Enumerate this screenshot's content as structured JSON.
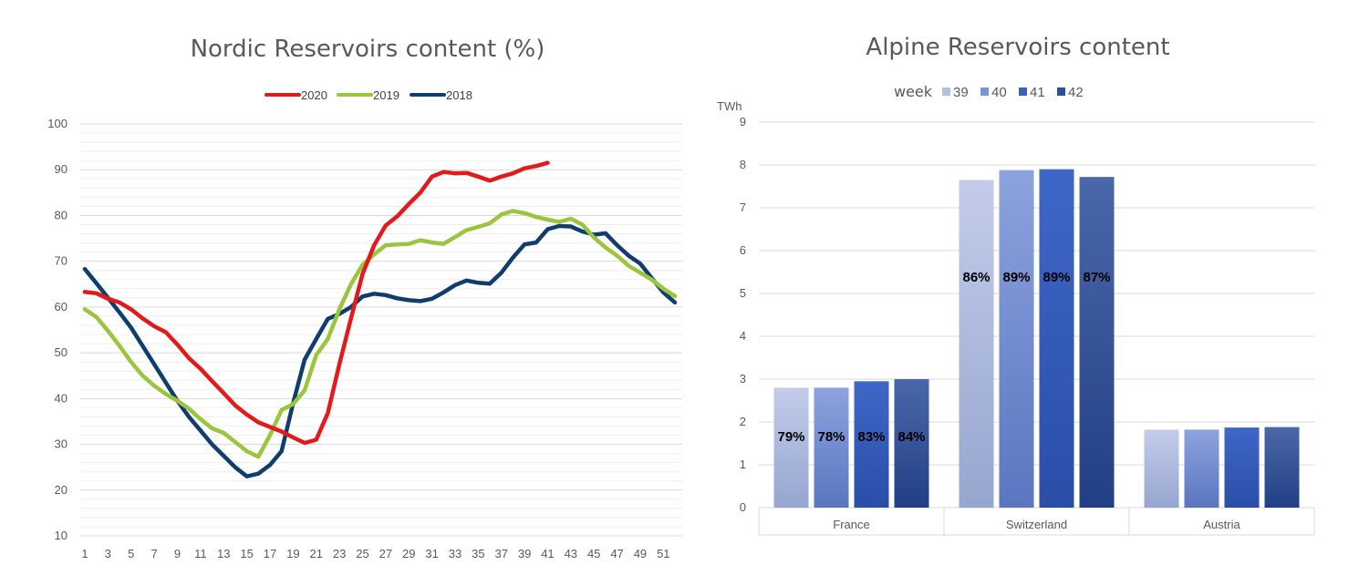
{
  "chart_data": [
    {
      "type": "line",
      "title": "Nordic Reservoirs content (%)",
      "xlabel": "",
      "ylabel": "",
      "ylim": [
        10,
        100
      ],
      "xlim": [
        1,
        52
      ],
      "grid": true,
      "legend_position": "top-center",
      "y_ticks": [
        10,
        20,
        30,
        40,
        50,
        60,
        70,
        80,
        90,
        100
      ],
      "x_ticks": [
        1,
        3,
        5,
        7,
        9,
        11,
        13,
        15,
        17,
        19,
        21,
        23,
        25,
        27,
        29,
        31,
        33,
        35,
        37,
        39,
        41,
        43,
        45,
        47,
        49,
        51
      ],
      "series": [
        {
          "name": "2020",
          "color": "#e31a1c",
          "x": [
            1,
            2,
            3,
            4,
            5,
            6,
            7,
            8,
            9,
            10,
            11,
            12,
            13,
            14,
            15,
            16,
            17,
            18,
            19,
            20,
            21,
            22,
            23,
            24,
            25,
            26,
            27,
            28,
            29,
            30,
            31,
            32,
            33,
            34,
            35,
            36,
            37,
            38,
            39,
            40,
            41
          ],
          "y": [
            63.3,
            63.0,
            61.8,
            61.0,
            59.5,
            57.5,
            55.8,
            54.5,
            51.8,
            48.8,
            46.5,
            43.8,
            41.2,
            38.5,
            36.5,
            34.8,
            33.8,
            32.8,
            31.5,
            30.3,
            31.0,
            36.8,
            47.5,
            57.5,
            67.2,
            73.5,
            77.8,
            79.8,
            82.5,
            85.0,
            88.5,
            89.5,
            89.2,
            89.3,
            88.5,
            87.6,
            88.5,
            89.2,
            90.3,
            90.8,
            91.5
          ]
        },
        {
          "name": "2019",
          "color": "#9bc53d",
          "x": [
            1,
            2,
            3,
            4,
            5,
            6,
            7,
            8,
            9,
            10,
            11,
            12,
            13,
            14,
            15,
            16,
            17,
            18,
            19,
            20,
            21,
            22,
            23,
            24,
            25,
            26,
            27,
            28,
            29,
            30,
            31,
            32,
            33,
            34,
            35,
            36,
            37,
            38,
            39,
            40,
            41,
            42,
            43,
            44,
            45,
            46,
            47,
            48,
            49,
            50,
            51,
            52
          ],
          "y": [
            59.5,
            57.8,
            54.8,
            51.5,
            48.0,
            45.0,
            42.8,
            41.0,
            39.5,
            37.8,
            35.5,
            33.5,
            32.5,
            30.5,
            28.5,
            27.3,
            32.0,
            37.5,
            38.8,
            41.8,
            49.5,
            53.0,
            59.5,
            65.0,
            69.2,
            71.5,
            73.5,
            73.7,
            73.8,
            74.6,
            74.1,
            73.8,
            75.3,
            76.8,
            77.5,
            78.3,
            80.2,
            81.0,
            80.5,
            79.7,
            79.1,
            78.6,
            79.3,
            78.0,
            75.2,
            73.0,
            71.2,
            69.0,
            67.5,
            66.0,
            64.0,
            62.4
          ]
        },
        {
          "name": "2018",
          "color": "#0f3d6e",
          "x": [
            1,
            2,
            3,
            4,
            5,
            6,
            7,
            8,
            9,
            10,
            11,
            12,
            13,
            14,
            15,
            16,
            17,
            18,
            19,
            20,
            21,
            22,
            23,
            24,
            25,
            26,
            27,
            28,
            29,
            30,
            31,
            32,
            33,
            34,
            35,
            36,
            37,
            38,
            39,
            40,
            41,
            42,
            43,
            44,
            45,
            46,
            47,
            48,
            49,
            50,
            51,
            52
          ],
          "y": [
            68.3,
            65.2,
            62.0,
            58.8,
            55.5,
            51.5,
            47.5,
            43.5,
            39.5,
            36.0,
            33.0,
            30.0,
            27.5,
            25.0,
            23.0,
            23.6,
            25.5,
            28.5,
            39.0,
            48.5,
            53.0,
            57.4,
            58.5,
            60.0,
            62.3,
            62.9,
            62.6,
            61.9,
            61.5,
            61.3,
            61.8,
            63.2,
            64.8,
            65.8,
            65.3,
            65.1,
            67.5,
            70.8,
            73.7,
            74.1,
            77.0,
            77.7,
            77.6,
            76.5,
            75.8,
            76.1,
            73.5,
            71.2,
            69.5,
            66.3,
            63.2,
            61.0
          ]
        }
      ]
    },
    {
      "type": "bar",
      "title": "Alpine Reservoirs content",
      "ylabel": "TWh",
      "xlabel": "",
      "ylim": [
        0,
        9
      ],
      "y_ticks": [
        0,
        1,
        2,
        3,
        4,
        5,
        6,
        7,
        8,
        9
      ],
      "grid": true,
      "legend_position": "top-left",
      "legend_title": "week",
      "categories": [
        "France",
        "Switzerland",
        "Austria"
      ],
      "series": [
        {
          "name": "39",
          "color": "#b4c0e2",
          "values": [
            2.8,
            7.65,
            1.82
          ],
          "labels": [
            "79%",
            "86%",
            ""
          ]
        },
        {
          "name": "40",
          "color": "#7a93d4",
          "values": [
            2.8,
            7.88,
            1.82
          ],
          "labels": [
            "78%",
            "89%",
            ""
          ]
        },
        {
          "name": "41",
          "color": "#3a5fbe",
          "values": [
            2.95,
            7.9,
            1.87
          ],
          "labels": [
            "83%",
            "89%",
            ""
          ]
        },
        {
          "name": "42",
          "color": "#2c4f9a",
          "values": [
            3.0,
            7.72,
            1.88
          ],
          "labels": [
            "84%",
            "87%",
            ""
          ]
        }
      ]
    }
  ]
}
